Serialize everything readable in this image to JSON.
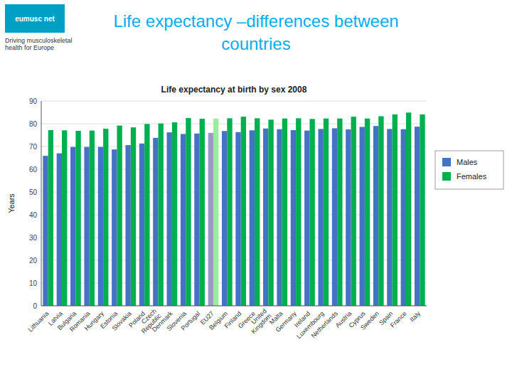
{
  "chart_data": {
    "type": "bar",
    "title": "Life expectancy –differences between\ncountries",
    "subtitle": "Life expectancy at birth by sex 2008",
    "y_label": "Years",
    "annotations": [
      "eumusc net",
      "Driving musculoskeletal\nhealth for Europe"
    ],
    "categories": [
      "Lithuania",
      "Latvia",
      "Bulgaria",
      "Romania",
      "Hungary",
      "Estonia",
      "Slovakia",
      "Poland",
      "Czech\nRepublic",
      "Denmark",
      "Slovenia",
      "Portugal",
      "EU27",
      "Belgium",
      "Finland",
      "Greece",
      "United\nKingdom",
      "Malta",
      "Germany",
      "Ireland",
      "Luxembourg",
      "Netherlands",
      "Austria",
      "Cyprus",
      "Sweden",
      "Spain",
      "France",
      "Italy"
    ],
    "series": [
      {
        "name": "Males",
        "color": "#4472c4",
        "colors": [
          "#4472c4",
          "#4472c4",
          "#4472c4",
          "#4472c4",
          "#4472c4",
          "#4472c4",
          "#4472c4",
          "#4472c4",
          "#4472c4",
          "#4472c4",
          "#4472c4",
          "#4472c4",
          "#9999cc",
          "#4472c4",
          "#4472c4",
          "#4472c4",
          "#4472c4",
          "#4472c4",
          "#4472c4",
          "#4472c4",
          "#4472c4",
          "#4472c4",
          "#4472c4",
          "#4472c4",
          "#4472c4",
          "#4472c4",
          "#4472c4",
          "#4472c4"
        ],
        "values": [
          65.9,
          67.0,
          69.8,
          69.8,
          69.8,
          68.7,
          70.6,
          71.3,
          73.8,
          76.2,
          75.5,
          75.7,
          76.0,
          76.8,
          76.3,
          77.1,
          77.9,
          77.6,
          77.2,
          77.0,
          77.7,
          78.0,
          77.5,
          78.6,
          79.0,
          77.7,
          77.6,
          78.7
        ]
      },
      {
        "name": "Females",
        "color": "#00b050",
        "colors": [
          "#00b050",
          "#00b050",
          "#00b050",
          "#00b050",
          "#00b050",
          "#00b050",
          "#00b050",
          "#00b050",
          "#00b050",
          "#00b050",
          "#00b050",
          "#00b050",
          "#99ee99",
          "#00b050",
          "#00b050",
          "#00b050",
          "#00b050",
          "#00b050",
          "#00b050",
          "#00b050",
          "#00b050",
          "#00b050",
          "#00b050",
          "#00b050",
          "#00b050",
          "#00b050",
          "#00b050",
          "#00b050"
        ],
        "values": [
          77.2,
          77.1,
          76.9,
          77.0,
          77.8,
          79.2,
          78.4,
          79.9,
          80.1,
          80.6,
          82.5,
          82.2,
          82.2,
          82.4,
          83.1,
          82.4,
          81.8,
          82.3,
          82.4,
          82.1,
          82.3,
          82.3,
          83.1,
          82.3,
          83.3,
          84.1,
          84.9,
          84.1
        ]
      }
    ],
    "ylim": [
      0,
      90
    ],
    "yticks": [
      0,
      10,
      20,
      30,
      40,
      50,
      60,
      70,
      80,
      90
    ],
    "grid": true,
    "legend": "right"
  }
}
